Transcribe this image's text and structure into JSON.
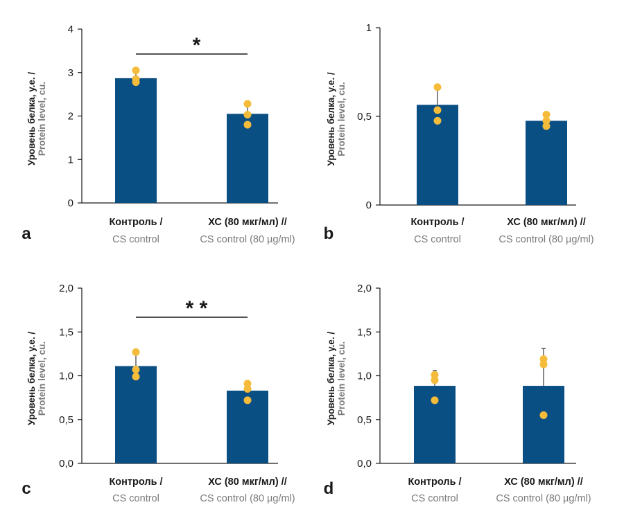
{
  "colors": {
    "bar": "#0a4f84",
    "point": "#f4bc3a",
    "axis": "#1a1a1a",
    "errorbar": "#555555",
    "label_primary": "#1a1a1a",
    "label_secondary": "#7a7a7a"
  },
  "chart_data": [
    {
      "type": "bar",
      "panel": "a",
      "ylabel_line1": "Уровень белка, у.е. /",
      "ylabel_line2": "Protein level, cu.",
      "ylim": [
        0,
        4
      ],
      "ytick_values": [
        0,
        1,
        2,
        3,
        4
      ],
      "ytick_labels": [
        "0",
        "1",
        "2",
        "3",
        "4"
      ],
      "categories_line1": [
        "Контроль /",
        "ХС (80 мкг/мл) //"
      ],
      "categories_line2": [
        "CS control",
        "CS control (80 µg/ml)"
      ],
      "values": [
        2.87,
        2.05
      ],
      "error_upper": [
        3.02,
        2.27
      ],
      "points": [
        [
          3.05,
          2.85,
          2.78
        ],
        [
          2.28,
          2.03,
          1.8
        ]
      ],
      "significance": {
        "label": "*",
        "between": [
          0,
          1
        ]
      }
    },
    {
      "type": "bar",
      "panel": "b",
      "ylabel_line1": "Уровень белка, у.е. /",
      "ylabel_line2": "Protein level, cu.",
      "ylim": [
        0,
        1
      ],
      "ytick_values": [
        0,
        0.5,
        1
      ],
      "ytick_labels": [
        "0",
        "0,5",
        "1"
      ],
      "categories_line1": [
        "Контроль /",
        "ХС (80 мкг/мл) //"
      ],
      "categories_line2": [
        "CS control",
        "CS control (80 µg/ml)"
      ],
      "values": [
        0.565,
        0.475
      ],
      "error_upper": [
        0.665,
        0.51
      ],
      "points": [
        [
          0.665,
          0.535,
          0.475
        ],
        [
          0.51,
          0.475,
          0.445
        ]
      ],
      "significance": null
    },
    {
      "type": "bar",
      "panel": "c",
      "ylabel_line1": "Уровень белка, у.е. /",
      "ylabel_line2": "Protein level, cu.",
      "ylim": [
        0,
        2
      ],
      "ytick_values": [
        0,
        0.5,
        1,
        1.5,
        2
      ],
      "ytick_labels": [
        "0,0",
        "0,5",
        "1,0",
        "1,5",
        "2,0"
      ],
      "categories_line1": [
        "Контроль /",
        "ХС (80 мкг/мл) //"
      ],
      "categories_line2": [
        "CS control",
        "CS control (80 µg/ml)"
      ],
      "values": [
        1.11,
        0.83
      ],
      "error_upper": [
        1.25,
        0.91
      ],
      "points": [
        [
          1.27,
          1.07,
          0.99
        ],
        [
          0.91,
          0.85,
          0.72
        ]
      ],
      "significance": {
        "label": "* *",
        "between": [
          0,
          1
        ]
      }
    },
    {
      "type": "bar",
      "panel": "d",
      "ylabel_line1": "Уровень белка, у.е. /",
      "ylabel_line2": "Protein level, cu.",
      "ylim": [
        0,
        2
      ],
      "ytick_values": [
        0,
        0.5,
        1,
        1.5,
        2
      ],
      "ytick_labels": [
        "0,0",
        "0,5",
        "1,0",
        "1,5",
        "2,0"
      ],
      "categories_line1": [
        "Контроль /",
        "ХС (80 мкг/мл) //"
      ],
      "categories_line2": [
        "CS control",
        "CS control (80 µg/ml)"
      ],
      "values": [
        0.885,
        0.885
      ],
      "error_upper": [
        1.06,
        1.31
      ],
      "points": [
        [
          1.01,
          0.95,
          0.72
        ],
        [
          1.19,
          1.13,
          0.55
        ]
      ],
      "significance": null
    }
  ]
}
